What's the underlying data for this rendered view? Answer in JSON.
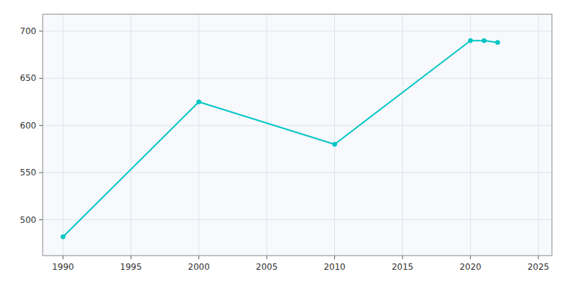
{
  "chart_data": {
    "type": "line",
    "x": [
      1990,
      2000,
      2010,
      2020,
      2021,
      2022
    ],
    "values": [
      482,
      625,
      580,
      690,
      690,
      688
    ],
    "color": "#00C5C5",
    "marker": "circle",
    "xlim": [
      1988.5,
      2026
    ],
    "ylim": [
      462,
      718
    ],
    "xticks": [
      1990,
      1995,
      2000,
      2005,
      2010,
      2015,
      2020,
      2025
    ],
    "yticks": [
      500,
      550,
      600,
      650,
      700
    ],
    "grid": true
  }
}
